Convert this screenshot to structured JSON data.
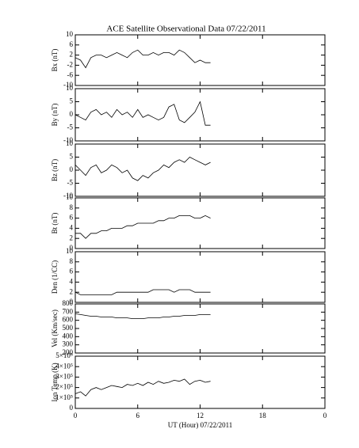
{
  "chart_data": [
    {
      "type": "line",
      "title": "ACE Satellite Observational Data   07/22/2011",
      "ylabel": "Bx (nT)",
      "x": [
        0,
        0.5,
        1,
        1.5,
        2,
        2.5,
        3,
        3.5,
        4,
        4.5,
        5,
        5.5,
        6,
        6.5,
        7,
        7.5,
        8,
        8.5,
        9,
        9.5,
        10,
        10.5,
        11,
        11.5,
        12,
        12.5,
        13
      ],
      "values": [
        1,
        0,
        -3,
        1,
        2,
        2,
        1,
        2,
        3,
        2,
        1,
        3,
        4,
        2,
        2,
        3,
        2,
        3,
        3,
        2,
        4,
        3,
        1,
        -1,
        0,
        -1,
        -1
      ],
      "ylim": [
        -10,
        10
      ],
      "yticks": [
        -10,
        -6,
        -2,
        2,
        6,
        10
      ],
      "xlim": [
        0,
        24
      ]
    },
    {
      "type": "line",
      "ylabel": "By (nT)",
      "x": [
        0,
        0.5,
        1,
        1.5,
        2,
        2.5,
        3,
        3.5,
        4,
        4.5,
        5,
        5.5,
        6,
        6.5,
        7,
        7.5,
        8,
        8.5,
        9,
        9.5,
        10,
        10.5,
        11,
        11.5,
        12,
        12.5,
        13
      ],
      "values": [
        0,
        -1,
        -2,
        1,
        2,
        0,
        1,
        -1,
        2,
        0,
        1,
        -1,
        2,
        -1,
        0,
        -1,
        -2,
        -1,
        3,
        4,
        -2,
        -3,
        -1,
        1,
        5,
        -4,
        -4
      ],
      "ylim": [
        -10,
        10
      ],
      "yticks": [
        -10,
        -5,
        0,
        5,
        10
      ],
      "xlim": [
        0,
        24
      ]
    },
    {
      "type": "line",
      "ylabel": "Bz (nT)",
      "x": [
        0,
        0.5,
        1,
        1.5,
        2,
        2.5,
        3,
        3.5,
        4,
        4.5,
        5,
        5.5,
        6,
        6.5,
        7,
        7.5,
        8,
        8.5,
        9,
        9.5,
        10,
        10.5,
        11,
        11.5,
        12,
        12.5,
        13
      ],
      "values": [
        2,
        0,
        -2,
        1,
        2,
        -1,
        0,
        2,
        1,
        -1,
        0,
        -3,
        -4,
        -2,
        -3,
        -1,
        0,
        2,
        1,
        3,
        4,
        3,
        5,
        4,
        3,
        2,
        3
      ],
      "ylim": [
        -10,
        10
      ],
      "yticks": [
        -10,
        -5,
        0,
        5,
        10
      ],
      "xlim": [
        0,
        24
      ]
    },
    {
      "type": "line",
      "ylabel": "Bt (nT)",
      "x": [
        0,
        0.5,
        1,
        1.5,
        2,
        2.5,
        3,
        3.5,
        4,
        4.5,
        5,
        5.5,
        6,
        6.5,
        7,
        7.5,
        8,
        8.5,
        9,
        9.5,
        10,
        10.5,
        11,
        11.5,
        12,
        12.5,
        13
      ],
      "values": [
        3,
        3,
        2,
        3,
        3,
        3.5,
        3.5,
        4,
        4,
        4,
        4.5,
        4.5,
        5,
        5,
        5,
        5,
        5.5,
        5.5,
        6,
        6,
        6.5,
        6.5,
        6.5,
        6,
        6,
        6.5,
        6
      ],
      "ylim": [
        0,
        10
      ],
      "yticks": [
        0,
        2,
        4,
        6,
        8,
        10
      ],
      "xlim": [
        0,
        24
      ]
    },
    {
      "type": "line",
      "ylabel": "Den (1/CC)",
      "x": [
        0,
        0.5,
        1,
        1.5,
        2,
        2.5,
        3,
        3.5,
        4,
        4.5,
        5,
        5.5,
        6,
        6.5,
        7,
        7.5,
        8,
        8.5,
        9,
        9.5,
        10,
        10.5,
        11,
        11.5,
        12,
        12.5,
        13
      ],
      "values": [
        2,
        1.5,
        1.5,
        1.5,
        1.5,
        1.5,
        1.5,
        1.5,
        2,
        2,
        2,
        2,
        2,
        2,
        2,
        2.5,
        2.5,
        2.5,
        2.5,
        2,
        2.5,
        2.5,
        2.5,
        2,
        2,
        2,
        2
      ],
      "ylim": [
        0,
        10
      ],
      "yticks": [
        0,
        2,
        4,
        6,
        8,
        10
      ],
      "xlim": [
        0,
        24
      ]
    },
    {
      "type": "line",
      "ylabel": "Vel (Km/sec)",
      "x": [
        0,
        0.5,
        1,
        1.5,
        2,
        2.5,
        3,
        3.5,
        4,
        4.5,
        5,
        5.5,
        6,
        6.5,
        7,
        7.5,
        8,
        8.5,
        9,
        9.5,
        10,
        10.5,
        11,
        11.5,
        12,
        12.5,
        13
      ],
      "values": [
        680,
        670,
        660,
        650,
        650,
        640,
        640,
        640,
        630,
        630,
        630,
        620,
        620,
        620,
        630,
        630,
        630,
        640,
        640,
        650,
        650,
        660,
        660,
        660,
        670,
        670,
        670
      ],
      "ylim": [
        200,
        800
      ],
      "yticks": [
        200,
        300,
        400,
        500,
        600,
        700,
        800
      ],
      "xlim": [
        0,
        24
      ]
    },
    {
      "type": "line",
      "ylabel": "Ion Temp (K)",
      "xlabel": "UT (Hour)  07/22/2011",
      "x": [
        0,
        0.5,
        1,
        1.5,
        2,
        2.5,
        3,
        3.5,
        4,
        4.5,
        5,
        5.5,
        6,
        6.5,
        7,
        7.5,
        8,
        8.5,
        9,
        9.5,
        10,
        10.5,
        11,
        11.5,
        12,
        12.5,
        13
      ],
      "values": [
        140000,
        160000,
        120000,
        180000,
        200000,
        180000,
        200000,
        220000,
        210000,
        200000,
        230000,
        220000,
        240000,
        220000,
        250000,
        230000,
        260000,
        240000,
        250000,
        270000,
        260000,
        280000,
        230000,
        260000,
        270000,
        250000,
        260000
      ],
      "ylim": [
        0,
        500000
      ],
      "yticks": [
        0,
        {
          "value": 100000,
          "label": "1×10⁵"
        },
        {
          "value": 200000,
          "label": "2×10⁵"
        },
        {
          "value": 300000,
          "label": "3×10⁵"
        },
        {
          "value": 400000,
          "label": "4×10⁵"
        },
        {
          "value": 500000,
          "label": "5×10⁵"
        }
      ],
      "xlim": [
        0,
        24
      ],
      "xticks": [
        0,
        6,
        12,
        18,
        {
          "value": 24,
          "label": "0"
        }
      ]
    }
  ]
}
